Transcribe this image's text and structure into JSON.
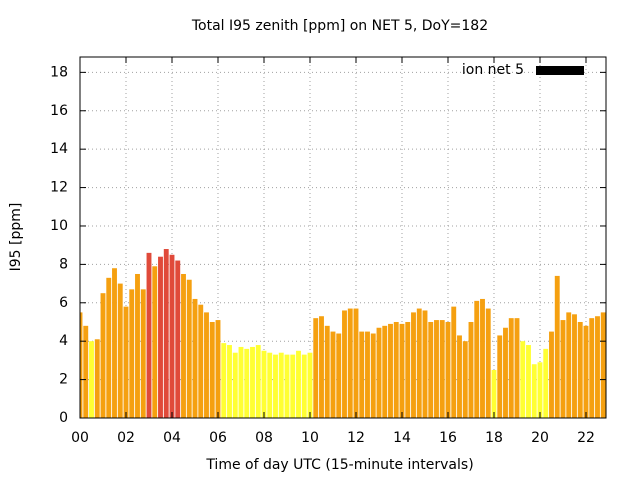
{
  "chart_data": {
    "type": "bar",
    "title": "Total I95 zenith [ppm] on NET 5, DoY=182",
    "x_label": "Time of day UTC (15-minute intervals)",
    "y_label": "I95 [ppm]",
    "xlim": [
      0,
      22.87
    ],
    "ylim": [
      0,
      18.8
    ],
    "xticks": [
      {
        "value": 0,
        "label": "00"
      },
      {
        "value": 2,
        "label": "02"
      },
      {
        "value": 4,
        "label": "04"
      },
      {
        "value": 6,
        "label": "06"
      },
      {
        "value": 8,
        "label": "08"
      },
      {
        "value": 10,
        "label": "10"
      },
      {
        "value": 12,
        "label": "12"
      },
      {
        "value": 14,
        "label": "14"
      },
      {
        "value": 16,
        "label": "16"
      },
      {
        "value": 18,
        "label": "18"
      },
      {
        "value": 20,
        "label": "20"
      },
      {
        "value": 22,
        "label": "22"
      }
    ],
    "yticks": [
      0,
      2,
      4,
      6,
      8,
      10,
      12,
      14,
      16,
      18
    ],
    "grid": true,
    "legend": "top-right",
    "x": [
      0,
      0.25,
      0.5,
      0.75,
      1,
      1.25,
      1.5,
      1.75,
      2,
      2.25,
      2.5,
      2.75,
      3,
      3.25,
      3.5,
      3.75,
      4,
      4.25,
      4.5,
      4.75,
      5,
      5.25,
      5.5,
      5.75,
      6,
      6.25,
      6.5,
      6.75,
      7,
      7.25,
      7.5,
      7.75,
      8,
      8.25,
      8.5,
      8.75,
      9,
      9.25,
      9.5,
      9.75,
      10,
      10.25,
      10.5,
      10.75,
      11,
      11.25,
      11.5,
      11.75,
      12,
      12.25,
      12.5,
      12.75,
      13,
      13.25,
      13.5,
      13.75,
      14,
      14.25,
      14.5,
      14.75,
      15,
      15.25,
      15.5,
      15.75,
      16,
      16.25,
      16.5,
      16.75,
      17,
      17.25,
      17.5,
      17.75,
      18,
      18.25,
      18.5,
      18.75,
      19,
      19.25,
      19.5,
      19.75,
      20,
      20.25,
      20.5,
      20.75,
      21,
      21.25,
      21.5,
      21.75,
      22,
      22.25,
      22.5,
      22.75
    ],
    "series": [
      {
        "name": "ion net 5",
        "color": "#000000",
        "values": [
          5.5,
          4.8,
          4.0,
          4.1,
          6.5,
          7.3,
          7.8,
          7.0,
          5.8,
          6.7,
          7.5,
          6.7,
          8.6,
          7.9,
          8.4,
          8.8,
          8.5,
          8.2,
          7.5,
          7.2,
          6.2,
          5.9,
          5.5,
          5.0,
          5.1,
          3.9,
          3.8,
          3.4,
          3.7,
          3.6,
          3.7,
          3.8,
          3.5,
          3.4,
          3.3,
          3.4,
          3.3,
          3.3,
          3.5,
          3.3,
          3.4,
          5.2,
          5.3,
          4.8,
          4.5,
          4.4,
          5.6,
          5.7,
          5.7,
          4.5,
          4.5,
          4.4,
          4.7,
          4.8,
          4.9,
          5.0,
          4.9,
          5.0,
          5.5,
          5.7,
          5.6,
          5.0,
          5.1,
          5.1,
          5.0,
          5.8,
          4.3,
          4.0,
          5.0,
          6.1,
          6.2,
          5.7,
          2.5,
          4.3,
          4.7,
          5.2,
          5.2,
          4.0,
          3.8,
          2.8,
          2.9,
          3.6,
          4.5,
          7.4,
          5.1,
          5.5,
          5.4,
          5.0,
          4.8,
          5.2,
          5.3,
          5.5
        ],
        "bar_colors": [
          "#f5a010",
          "#f5a010",
          "#ffff33",
          "#f5a010",
          "#f5a010",
          "#f5a010",
          "#f5a010",
          "#f5a010",
          "#f5a010",
          "#f5a010",
          "#f5a010",
          "#f5a010",
          "#e04a3a",
          "#f5a010",
          "#e04a3a",
          "#e04a3a",
          "#e04a3a",
          "#e04a3a",
          "#f5a010",
          "#f5a010",
          "#f5a010",
          "#f5a010",
          "#f5a010",
          "#f5a010",
          "#f5a010",
          "#ffff33",
          "#ffff33",
          "#ffff33",
          "#ffff33",
          "#ffff33",
          "#ffff33",
          "#ffff33",
          "#ffff33",
          "#ffff33",
          "#ffff33",
          "#ffff33",
          "#ffff33",
          "#ffff33",
          "#ffff33",
          "#ffff33",
          "#ffff33",
          "#f5a010",
          "#f5a010",
          "#f5a010",
          "#f5a010",
          "#f5a010",
          "#f5a010",
          "#f5a010",
          "#f5a010",
          "#f5a010",
          "#f5a010",
          "#f5a010",
          "#f5a010",
          "#f5a010",
          "#f5a010",
          "#f5a010",
          "#f5a010",
          "#f5a010",
          "#f5a010",
          "#f5a010",
          "#f5a010",
          "#f5a010",
          "#f5a010",
          "#f5a010",
          "#f5a010",
          "#f5a010",
          "#f5a010",
          "#f5a010",
          "#f5a010",
          "#f5a010",
          "#f5a010",
          "#f5a010",
          "#ffff33",
          "#f5a010",
          "#f5a010",
          "#f5a010",
          "#f5a010",
          "#ffff33",
          "#ffff33",
          "#ffff33",
          "#ffff33",
          "#ffff33",
          "#f5a010",
          "#f5a010",
          "#f5a010",
          "#f5a010",
          "#f5a010",
          "#f5a010",
          "#f5a010",
          "#f5a010",
          "#f5a010",
          "#f5a010"
        ]
      }
    ]
  }
}
